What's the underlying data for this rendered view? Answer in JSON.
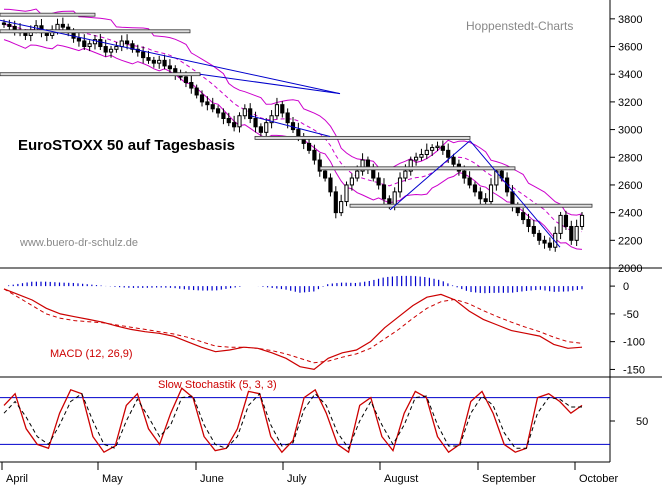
{
  "title": "EuroSTOXX 50 auf Tagesbasis",
  "watermark": "Hoppenstedt-Charts",
  "website": "www.buero-dr-schulz.de",
  "months": [
    "April",
    "May",
    "June",
    "July",
    "August",
    "September",
    "October"
  ],
  "colors": {
    "candle": "#000000",
    "band": "#cc00cc",
    "trend": "#0000cc",
    "macd": "#cc0000",
    "stoch_fast": "#cc0000",
    "stoch_levels": "#0000cc"
  },
  "chart_data": [
    {
      "type": "candlestick",
      "title": "EuroSTOXX 50 auf Tagesbasis",
      "ylim": [
        2000,
        3900
      ],
      "y_ticks": [
        2000,
        2200,
        2400,
        2600,
        2800,
        3000,
        3200,
        3400,
        3600,
        3800
      ],
      "close_approx": [
        3760,
        3745,
        3720,
        3700,
        3680,
        3720,
        3750,
        3700,
        3680,
        3720,
        3760,
        3740,
        3700,
        3660,
        3640,
        3600,
        3620,
        3650,
        3600,
        3560,
        3580,
        3600,
        3640,
        3620,
        3580,
        3560,
        3520,
        3500,
        3480,
        3500,
        3460,
        3440,
        3400,
        3380,
        3340,
        3300,
        3250,
        3200,
        3180,
        3150,
        3120,
        3080,
        3050,
        3020,
        3100,
        3150,
        3080,
        3020,
        2980,
        3050,
        3100,
        3180,
        3120,
        3050,
        3000,
        2950,
        2900,
        2850,
        2780,
        2700,
        2650,
        2550,
        2400,
        2480,
        2600,
        2650,
        2700,
        2780,
        2720,
        2650,
        2600,
        2500,
        2450,
        2550,
        2650,
        2700,
        2780,
        2800,
        2820,
        2850,
        2870,
        2880,
        2850,
        2800,
        2750,
        2700,
        2650,
        2600,
        2550,
        2500,
        2480,
        2600,
        2700,
        2650,
        2550,
        2450,
        2400,
        2350,
        2300,
        2250,
        2200,
        2180,
        2150,
        2250,
        2380,
        2300,
        2200,
        2300,
        2380
      ],
      "annotations": [
        "Hoppenstedt-Charts",
        "www.buero-dr-schulz.de"
      ]
    },
    {
      "type": "line",
      "title": "MACD (12, 26,9)",
      "ylim": [
        -160,
        20
      ],
      "y_ticks": [
        0,
        -50,
        -100,
        -150
      ],
      "series": [
        {
          "style": "solid",
          "values": [
            -5,
            -15,
            -25,
            -40,
            -50,
            -55,
            -60,
            -65,
            -72,
            -78,
            -82,
            -85,
            -90,
            -100,
            -110,
            -118,
            -115,
            -110,
            -112,
            -120,
            -130,
            -145,
            -150,
            -130,
            -120,
            -115,
            -100,
            -75,
            -55,
            -35,
            -20,
            -15,
            -25,
            -45,
            -60,
            -70,
            -80,
            -85,
            -90,
            -105,
            -112,
            -110
          ]
        },
        {
          "style": "dashed",
          "values": [
            -5,
            -20,
            -35,
            -50,
            -58,
            -62,
            -64,
            -66,
            -70,
            -74,
            -78,
            -82,
            -86,
            -92,
            -100,
            -108,
            -110,
            -110,
            -112,
            -116,
            -122,
            -130,
            -138,
            -135,
            -128,
            -122,
            -112,
            -95,
            -78,
            -58,
            -40,
            -28,
            -24,
            -32,
            -44,
            -55,
            -65,
            -74,
            -82,
            -92,
            -100,
            -103
          ]
        }
      ]
    },
    {
      "type": "line",
      "title": "Slow Stochastik (5, 3, 3)",
      "ylim": [
        0,
        100
      ],
      "y_ticks": [
        50
      ],
      "levels": [
        80,
        20
      ],
      "series": [
        {
          "style": "solid",
          "values": [
            70,
            85,
            40,
            20,
            15,
            60,
            90,
            85,
            30,
            10,
            18,
            70,
            85,
            40,
            20,
            60,
            92,
            80,
            30,
            12,
            15,
            40,
            88,
            85,
            30,
            10,
            25,
            80,
            90,
            60,
            20,
            10,
            70,
            80,
            30,
            12,
            60,
            88,
            80,
            30,
            10,
            20,
            75,
            88,
            60,
            20,
            10,
            15,
            80,
            85,
            75,
            60,
            70
          ]
        },
        {
          "style": "dashed",
          "values": [
            60,
            75,
            55,
            30,
            20,
            45,
            75,
            85,
            50,
            20,
            15,
            50,
            78,
            55,
            30,
            45,
            80,
            82,
            45,
            20,
            15,
            30,
            70,
            85,
            45,
            18,
            22,
            65,
            85,
            70,
            35,
            15,
            50,
            75,
            45,
            20,
            45,
            80,
            82,
            45,
            18,
            18,
            60,
            82,
            70,
            35,
            15,
            15,
            60,
            80,
            78,
            68,
            68
          ]
        }
      ]
    }
  ]
}
